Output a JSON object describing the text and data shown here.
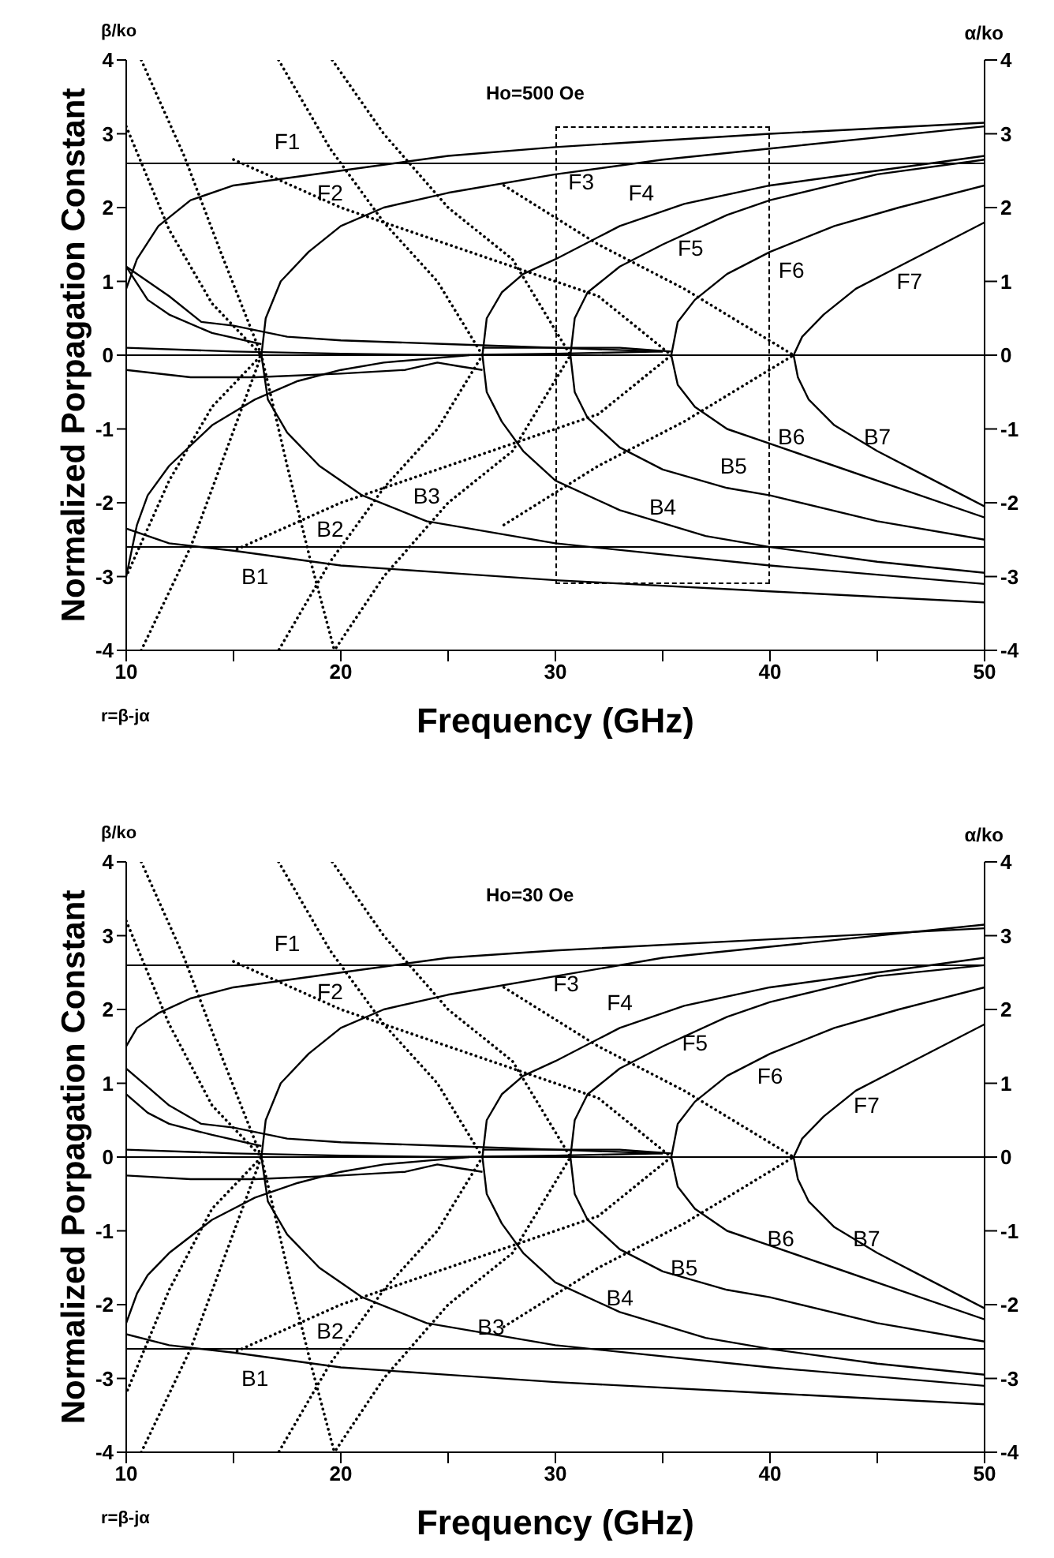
{
  "chart_data": [
    {
      "type": "line",
      "title": "Ho=500 Oe",
      "xlabel": "Frequency (GHz)",
      "ylabel": "Normalized Porpagation Constant",
      "y2label": "α/ko",
      "marker": "none",
      "xlim": [
        10,
        50
      ],
      "xticks": [
        10,
        {
          "value": 15,
          "label": null
        },
        20,
        {
          "value": 25,
          "label": null
        },
        30,
        {
          "value": 35,
          "label": null
        },
        40,
        {
          "value": 45,
          "label": null
        },
        50
      ],
      "ylim": [
        -4,
        4
      ],
      "yticks": [
        -4,
        -3,
        -2,
        -1,
        0,
        1,
        2,
        3,
        4
      ],
      "y2lim": [
        -4,
        4
      ],
      "y2ticks": [
        -4,
        -3,
        -2,
        -1,
        0,
        1,
        2,
        3,
        4
      ],
      "ref_lines": [
        {
          "axis": "y",
          "value": 2.6
        },
        {
          "axis": "y",
          "value": 0
        },
        {
          "axis": "y",
          "value": -2.6
        }
      ],
      "annotations": [
        "β/ko",
        "r=β-jα",
        "F1",
        "F2",
        "F3",
        "F4",
        "F5",
        "F6",
        "F7",
        "B1",
        "B2",
        "B3",
        "B4",
        "B5",
        "B6",
        "B7"
      ],
      "series": [
        {
          "color": "#000000",
          "line_style": "solid",
          "x": [
            10,
            10.5,
            11.5,
            13,
            15,
            20,
            25,
            30,
            40,
            50
          ],
          "values": [
            0.9,
            1.3,
            1.75,
            2.1,
            2.3,
            2.5,
            2.7,
            2.82,
            3.0,
            3.15
          ]
        },
        {
          "color": "#000000",
          "line_style": "solid",
          "x": [
            50,
            40,
            35,
            30,
            25,
            22,
            20,
            18.5,
            17.2,
            16.5,
            16.3,
            16.6,
            17.5,
            19,
            21,
            24,
            30,
            40,
            50
          ],
          "values": [
            3.1,
            2.8,
            2.65,
            2.45,
            2.2,
            2.0,
            1.75,
            1.4,
            1.0,
            0.5,
            0,
            -0.6,
            -1.05,
            -1.5,
            -1.9,
            -2.25,
            -2.55,
            -2.85,
            -3.1
          ]
        },
        {
          "color": "#000000",
          "line_style": "solid",
          "x": [
            50,
            45,
            40,
            36,
            33,
            30,
            28.5,
            27.5,
            26.8,
            26.6,
            26.8,
            27.5,
            28.5,
            30,
            33,
            37,
            40,
            45,
            50
          ],
          "values": [
            2.7,
            2.5,
            2.3,
            2.05,
            1.75,
            1.3,
            1.1,
            0.85,
            0.5,
            0,
            -0.5,
            -0.9,
            -1.3,
            -1.7,
            -2.1,
            -2.45,
            -2.6,
            -2.8,
            -2.95
          ]
        },
        {
          "color": "#000000",
          "line_style": "solid",
          "x": [
            50,
            45,
            40,
            38,
            35,
            33,
            31.5,
            30.9,
            30.7,
            30.9,
            31.5,
            33,
            35,
            38,
            40,
            45,
            50
          ],
          "values": [
            2.65,
            2.45,
            2.1,
            1.9,
            1.5,
            1.2,
            0.85,
            0.5,
            0,
            -0.5,
            -0.85,
            -1.25,
            -1.55,
            -1.8,
            -1.9,
            -2.25,
            -2.5
          ]
        },
        {
          "color": "#000000",
          "line_style": "solid",
          "x": [
            50,
            46,
            43,
            40,
            38,
            36.5,
            35.7,
            35.4,
            35.7,
            36.5,
            38,
            40,
            43,
            46,
            50
          ],
          "values": [
            2.3,
            2.0,
            1.75,
            1.4,
            1.1,
            0.75,
            0.45,
            0,
            -0.4,
            -0.7,
            -1.0,
            -1.2,
            -1.5,
            -1.8,
            -2.2
          ]
        },
        {
          "color": "#000000",
          "line_style": "solid",
          "x": [
            50,
            48,
            46,
            44,
            42.5,
            41.5,
            41.1,
            41.3,
            41.8,
            43,
            45,
            47,
            50
          ],
          "values": [
            1.8,
            1.5,
            1.2,
            0.9,
            0.55,
            0.25,
            0,
            -0.3,
            -0.6,
            -0.95,
            -1.3,
            -1.6,
            -2.05
          ]
        },
        {
          "color": "#000000",
          "line_style": "solid",
          "x": [
            10,
            12,
            15,
            20,
            25,
            30,
            40,
            50
          ],
          "values": [
            -2.35,
            -2.55,
            -2.65,
            -2.85,
            -2.95,
            -3.05,
            -3.2,
            -3.35
          ]
        },
        {
          "color": "#000000",
          "line_style": "solid",
          "x": [
            10,
            10.5,
            11,
            12,
            14,
            16,
            18,
            20,
            22,
            24,
            26
          ],
          "values": [
            -3.0,
            -2.3,
            -1.9,
            -1.5,
            -0.95,
            -0.6,
            -0.35,
            -0.2,
            -0.1,
            -0.05,
            0
          ]
        },
        {
          "color": "#000000",
          "line_style": "solid",
          "x": [
            10,
            11,
            12,
            13.5,
            15,
            17.5,
            20,
            25,
            30,
            35
          ],
          "values": [
            1.2,
            1.0,
            0.8,
            0.45,
            0.4,
            0.25,
            0.2,
            0.15,
            0.1,
            0.05
          ]
        },
        {
          "color": "#000000",
          "line_style": "solid",
          "x": [
            10,
            11,
            12,
            14,
            16.3
          ],
          "values": [
            1.2,
            0.75,
            0.55,
            0.3,
            0.15
          ]
        },
        {
          "color": "#000000",
          "line_style": "solid",
          "x": [
            10,
            15,
            20,
            25,
            30,
            35
          ],
          "values": [
            0.1,
            0.05,
            0.02,
            0,
            0.02,
            0.05
          ]
        },
        {
          "color": "#000000",
          "line_style": "solid",
          "x": [
            10,
            13,
            16,
            20,
            23,
            24.5,
            25.5,
            26.6
          ],
          "values": [
            -0.2,
            -0.3,
            -0.3,
            -0.25,
            -0.2,
            -0.1,
            -0.15,
            -0.2
          ]
        },
        {
          "color": "#000000",
          "line_style": "solid",
          "x": [
            26.6,
            28,
            30,
            33,
            35.4
          ],
          "values": [
            0.1,
            0.1,
            0.1,
            0.1,
            0.05
          ]
        },
        {
          "color": "#000000",
          "line_style": "dotted",
          "x": [
            10.7,
            12.7,
            14.4,
            16.3,
            17.5,
            18.6,
            19.7
          ],
          "values": [
            4,
            2.7,
            1.4,
            0,
            -1.5,
            -2.8,
            -4
          ]
        },
        {
          "color": "#000000",
          "line_style": "dotted",
          "x": [
            10,
            12,
            14,
            16.3,
            14,
            12,
            10
          ],
          "values": [
            3.1,
            1.7,
            0.7,
            0,
            -0.7,
            -1.7,
            -3.0
          ]
        },
        {
          "color": "#000000",
          "line_style": "dotted",
          "x": [
            10.7,
            13,
            16.3
          ],
          "values": [
            -4,
            -2.6,
            0
          ]
        },
        {
          "color": "#000000",
          "line_style": "dotted",
          "x": [
            17.1,
            19.5,
            22,
            24.5,
            26.6,
            24.5,
            22,
            19.5,
            17.1
          ],
          "values": [
            4,
            2.8,
            1.8,
            1.0,
            0,
            -1.0,
            -1.8,
            -2.8,
            -4
          ]
        },
        {
          "color": "#000000",
          "line_style": "dotted",
          "x": [
            19.6,
            22,
            25,
            28,
            30.7,
            28,
            25,
            22,
            19.7
          ],
          "values": [
            4,
            3,
            2,
            1.3,
            0,
            -1.3,
            -2,
            -3,
            -4
          ]
        },
        {
          "color": "#000000",
          "line_style": "dotted",
          "x": [
            15,
            20,
            25,
            29,
            32,
            35.4,
            32,
            29,
            25,
            20,
            15
          ],
          "values": [
            2.65,
            2.0,
            1.5,
            1.1,
            0.8,
            0,
            -0.8,
            -1.1,
            -1.5,
            -2.0,
            -2.65
          ]
        },
        {
          "color": "#000000",
          "line_style": "dotted",
          "x": [
            27.6,
            32,
            36,
            41.1,
            36,
            32,
            27.6
          ],
          "values": [
            2.3,
            1.5,
            0.9,
            0,
            -0.9,
            -1.5,
            -2.3
          ]
        }
      ]
    },
    {
      "type": "line",
      "title": "Ho=30 Oe",
      "xlabel": "Frequency (GHz)",
      "ylabel": "Normalized Porpagation Constant",
      "y2label": "α/ko",
      "marker": "none",
      "xlim": [
        10,
        50
      ],
      "xticks": [
        10,
        {
          "value": 15,
          "label": null
        },
        20,
        {
          "value": 25,
          "label": null
        },
        30,
        {
          "value": 35,
          "label": null
        },
        40,
        {
          "value": 45,
          "label": null
        },
        50
      ],
      "ylim": [
        -4,
        4
      ],
      "yticks": [
        -4,
        -3,
        -2,
        -1,
        0,
        1,
        2,
        3,
        4
      ],
      "y2lim": [
        -4,
        4
      ],
      "y2ticks": [
        -4,
        -3,
        -2,
        -1,
        0,
        1,
        2,
        3,
        4
      ],
      "ref_lines": [
        {
          "axis": "y",
          "value": 2.6
        },
        {
          "axis": "y",
          "value": 0
        },
        {
          "axis": "y",
          "value": -2.6
        }
      ],
      "annotations": [
        "β/ko",
        "r=β-jα",
        "F1",
        "F2",
        "F3",
        "F4",
        "F5",
        "F6",
        "F7",
        "B1",
        "B2",
        "B3",
        "B4",
        "B5",
        "B6",
        "B7"
      ],
      "series": [
        {
          "color": "#000000",
          "line_style": "solid",
          "x": [
            10,
            10.5,
            11.5,
            13,
            15,
            20,
            25,
            30,
            40,
            50
          ],
          "values": [
            1.5,
            1.75,
            1.95,
            2.15,
            2.3,
            2.5,
            2.7,
            2.8,
            2.95,
            3.1
          ]
        },
        {
          "color": "#000000",
          "line_style": "solid",
          "x": [
            50,
            40,
            35,
            30,
            25,
            22,
            20,
            18.5,
            17.2,
            16.5,
            16.3,
            16.6,
            17.5,
            19,
            21,
            24,
            30,
            40,
            50
          ],
          "values": [
            3.15,
            2.85,
            2.7,
            2.45,
            2.2,
            2.0,
            1.75,
            1.4,
            1.0,
            0.5,
            0,
            -0.6,
            -1.05,
            -1.5,
            -1.9,
            -2.25,
            -2.55,
            -2.85,
            -3.1
          ]
        },
        {
          "color": "#000000",
          "line_style": "solid",
          "x": [
            50,
            45,
            40,
            36,
            33,
            30,
            28.5,
            27.5,
            26.8,
            26.6,
            26.8,
            27.5,
            28.5,
            30,
            33,
            37,
            40,
            45,
            50
          ],
          "values": [
            2.7,
            2.5,
            2.3,
            2.05,
            1.75,
            1.3,
            1.1,
            0.85,
            0.5,
            0,
            -0.5,
            -0.9,
            -1.3,
            -1.7,
            -2.1,
            -2.45,
            -2.6,
            -2.8,
            -2.95
          ]
        },
        {
          "color": "#000000",
          "line_style": "solid",
          "x": [
            50,
            45,
            40,
            38,
            35,
            33,
            31.5,
            30.9,
            30.7,
            30.9,
            31.5,
            33,
            35,
            38,
            40,
            45,
            50
          ],
          "values": [
            2.6,
            2.45,
            2.1,
            1.9,
            1.5,
            1.2,
            0.85,
            0.5,
            0,
            -0.5,
            -0.85,
            -1.25,
            -1.55,
            -1.8,
            -1.9,
            -2.25,
            -2.5
          ]
        },
        {
          "color": "#000000",
          "line_style": "solid",
          "x": [
            50,
            46,
            43,
            40,
            38,
            36.5,
            35.7,
            35.4,
            35.7,
            36.5,
            38,
            40,
            43,
            46,
            50
          ],
          "values": [
            2.3,
            2.0,
            1.75,
            1.4,
            1.1,
            0.75,
            0.45,
            0,
            -0.4,
            -0.7,
            -1.0,
            -1.2,
            -1.5,
            -1.8,
            -2.2
          ]
        },
        {
          "color": "#000000",
          "line_style": "solid",
          "x": [
            50,
            48,
            46,
            44,
            42.5,
            41.5,
            41.1,
            41.3,
            41.8,
            43,
            45,
            47,
            50
          ],
          "values": [
            1.8,
            1.5,
            1.2,
            0.9,
            0.55,
            0.25,
            0,
            -0.3,
            -0.6,
            -0.95,
            -1.3,
            -1.6,
            -2.05
          ]
        },
        {
          "color": "#000000",
          "line_style": "solid",
          "x": [
            10,
            12,
            15,
            20,
            25,
            30,
            40,
            50
          ],
          "values": [
            -2.4,
            -2.55,
            -2.65,
            -2.85,
            -2.95,
            -3.05,
            -3.2,
            -3.35
          ]
        },
        {
          "color": "#000000",
          "line_style": "solid",
          "x": [
            10,
            10.5,
            11,
            12,
            14,
            16,
            18,
            20,
            22,
            24,
            26
          ],
          "values": [
            -2.25,
            -1.85,
            -1.6,
            -1.3,
            -0.85,
            -0.55,
            -0.35,
            -0.2,
            -0.1,
            -0.05,
            0
          ]
        },
        {
          "color": "#000000",
          "line_style": "solid",
          "x": [
            10,
            11,
            12,
            13.5,
            15,
            17.5,
            20,
            25,
            30,
            35
          ],
          "values": [
            1.2,
            0.95,
            0.7,
            0.45,
            0.4,
            0.25,
            0.2,
            0.15,
            0.1,
            0.05
          ]
        },
        {
          "color": "#000000",
          "line_style": "solid",
          "x": [
            10,
            11,
            12,
            14,
            16.3
          ],
          "values": [
            0.85,
            0.6,
            0.45,
            0.3,
            0.15
          ]
        },
        {
          "color": "#000000",
          "line_style": "solid",
          "x": [
            10,
            15,
            20,
            25,
            30,
            35
          ],
          "values": [
            0.1,
            0.05,
            0.02,
            0,
            0.02,
            0.05
          ]
        },
        {
          "color": "#000000",
          "line_style": "solid",
          "x": [
            10,
            13,
            16,
            20,
            23,
            24.5,
            25.5,
            26.6
          ],
          "values": [
            -0.25,
            -0.3,
            -0.3,
            -0.25,
            -0.2,
            -0.1,
            -0.15,
            -0.2
          ]
        },
        {
          "color": "#000000",
          "line_style": "solid",
          "x": [
            26.6,
            28,
            30,
            33,
            35.4
          ],
          "values": [
            0.1,
            0.1,
            0.1,
            0.1,
            0.05
          ]
        },
        {
          "color": "#000000",
          "line_style": "dotted",
          "x": [
            10.7,
            12.7,
            14.4,
            16.3,
            17.5,
            18.6,
            19.7
          ],
          "values": [
            4,
            2.7,
            1.4,
            0,
            -1.5,
            -2.8,
            -4
          ]
        },
        {
          "color": "#000000",
          "line_style": "dotted",
          "x": [
            10,
            12,
            14,
            16.3,
            14,
            12,
            10
          ],
          "values": [
            3.2,
            1.8,
            0.7,
            0,
            -0.7,
            -1.8,
            -3.2
          ]
        },
        {
          "color": "#000000",
          "line_style": "dotted",
          "x": [
            10.7,
            13,
            16.3
          ],
          "values": [
            -4,
            -2.6,
            0
          ]
        },
        {
          "color": "#000000",
          "line_style": "dotted",
          "x": [
            17.1,
            19.5,
            22,
            24.5,
            26.6,
            24.5,
            22,
            19.5,
            17.1
          ],
          "values": [
            4,
            2.8,
            1.8,
            1.0,
            0,
            -1.0,
            -1.8,
            -2.8,
            -4
          ]
        },
        {
          "color": "#000000",
          "line_style": "dotted",
          "x": [
            19.6,
            22,
            25,
            28,
            30.7,
            28,
            25,
            22,
            19.7
          ],
          "values": [
            4,
            3,
            2,
            1.3,
            0,
            -1.3,
            -2,
            -3,
            -4
          ]
        },
        {
          "color": "#000000",
          "line_style": "dotted",
          "x": [
            15,
            20,
            25,
            29,
            32,
            35.4,
            32,
            29,
            25,
            20,
            15
          ],
          "values": [
            2.65,
            2.0,
            1.5,
            1.1,
            0.8,
            0,
            -0.8,
            -1.1,
            -1.5,
            -2.0,
            -2.65
          ]
        },
        {
          "color": "#000000",
          "line_style": "dotted",
          "x": [
            27.6,
            32,
            36,
            41.1,
            36,
            32,
            27.6
          ],
          "values": [
            2.3,
            1.5,
            0.9,
            0,
            -0.9,
            -1.5,
            -2.3
          ]
        }
      ]
    }
  ]
}
